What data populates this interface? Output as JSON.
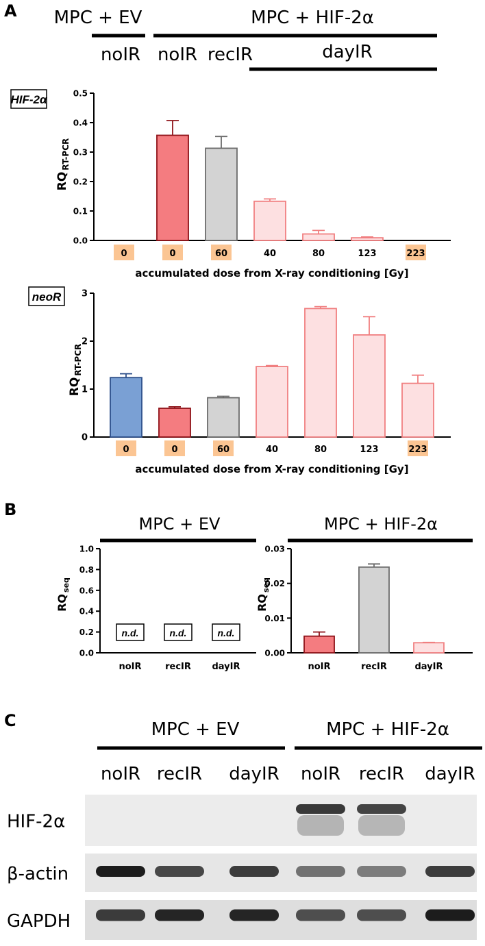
{
  "panels": {
    "A": {
      "label": "A",
      "header": {
        "group_ev": "MPC + EV",
        "group_hif": "MPC + HIF-2α",
        "cond_noIR_ev": "noIR",
        "cond_noIR_hif": "noIR",
        "cond_recIR": "recIR",
        "cond_dayIR": "dayIR"
      }
    },
    "B": {
      "label": "B",
      "title_ev": "MPC + EV",
      "title_hif": "MPC + HIF-2α"
    },
    "C": {
      "label": "C",
      "title_ev": "MPC + EV",
      "title_hif": "MPC + HIF-2α",
      "lanes": [
        "noIR",
        "recIR",
        "dayIR",
        "noIR",
        "recIR",
        "dayIR"
      ],
      "blots": [
        {
          "name": "HIF-2α",
          "intensities": [
            0,
            0,
            0,
            0.85,
            0.8,
            0
          ]
        },
        {
          "name": "β-actin",
          "intensities": [
            0.95,
            0.75,
            0.8,
            0.55,
            0.5,
            0.8
          ]
        },
        {
          "name": "GAPDH",
          "intensities": [
            0.8,
            0.9,
            0.9,
            0.7,
            0.7,
            0.95
          ]
        }
      ]
    }
  },
  "colors": {
    "ev_blue": "#7aa0d4",
    "noIR_red": "#f47c80",
    "recIR_gray": "#d3d3d3",
    "dayIR_pink": "#fde0e1",
    "dose_box": "#fbc593"
  },
  "chart_data": [
    {
      "type": "bar",
      "marker": "HIF-2α",
      "ylabel": "RQ",
      "ylabel_sub": "RT-PCR",
      "xlabel": "accumulated dose from X-ray conditioning [Gy]",
      "ylim": [
        0,
        0.5
      ],
      "yticks": [
        "0.0",
        "0.1",
        "0.2",
        "0.3",
        "0.4",
        "0.5"
      ],
      "categories": [
        "0",
        "0",
        "60",
        "40",
        "80",
        "123",
        "223"
      ],
      "highlighted": [
        true,
        true,
        true,
        false,
        false,
        false,
        true
      ],
      "values": [
        0,
        0.357,
        0.313,
        0.133,
        0.022,
        0.009,
        0
      ],
      "errors": [
        0,
        0.05,
        0.04,
        0.008,
        0.012,
        0.003,
        0
      ],
      "groups": [
        "ev",
        "noIR",
        "recIR",
        "dayIR",
        "dayIR",
        "dayIR",
        "dayIR"
      ]
    },
    {
      "type": "bar",
      "marker": "neoR",
      "ylabel": "RQ",
      "ylabel_sub": "RT-PCR",
      "xlabel": "accumulated dose from X-ray conditioning [Gy]",
      "ylim": [
        0,
        3
      ],
      "yticks": [
        "0",
        "1",
        "2",
        "3"
      ],
      "categories": [
        "0",
        "0",
        "60",
        "40",
        "80",
        "123",
        "223"
      ],
      "highlighted": [
        true,
        true,
        true,
        false,
        false,
        false,
        true
      ],
      "values": [
        1.24,
        0.6,
        0.82,
        1.47,
        2.68,
        2.13,
        1.12
      ],
      "errors": [
        0.08,
        0.03,
        0.03,
        0.02,
        0.04,
        0.38,
        0.17
      ],
      "groups": [
        "ev",
        "noIR",
        "recIR",
        "dayIR",
        "dayIR",
        "dayIR",
        "dayIR"
      ]
    },
    {
      "type": "bar",
      "title": "MPC + EV",
      "ylabel": "RQ",
      "ylabel_sub": "seq",
      "ylim": [
        0,
        1.0
      ],
      "yticks": [
        "0.0",
        "0.2",
        "0.4",
        "0.6",
        "0.8",
        "1.0"
      ],
      "categories": [
        "noIR",
        "recIR",
        "dayIR"
      ],
      "values": [
        null,
        null,
        null
      ],
      "annotations": [
        "n.d.",
        "n.d.",
        "n.d."
      ]
    },
    {
      "type": "bar",
      "title": "MPC + HIF-2α",
      "ylabel": "RQ",
      "ylabel_sub": "seq",
      "ylim": [
        0,
        0.03
      ],
      "yticks": [
        "0.00",
        "0.01",
        "0.02",
        "0.03"
      ],
      "categories": [
        "noIR",
        "recIR",
        "dayIR"
      ],
      "values": [
        0.0048,
        0.0247,
        0.0029
      ],
      "errors": [
        0.0012,
        0.0009,
        0.0001
      ],
      "groups": [
        "noIR",
        "recIR",
        "dayIR"
      ]
    }
  ]
}
